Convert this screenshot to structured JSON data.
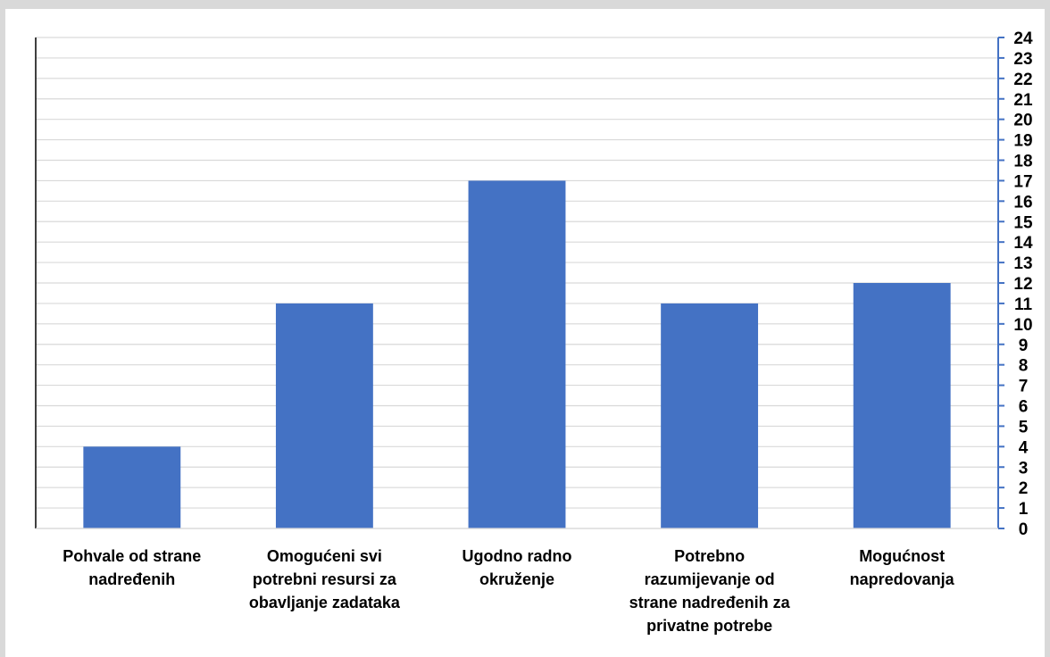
{
  "chart_data": {
    "type": "bar",
    "categories": [
      "Pohvale od strane nadređenih",
      "Omogućeni svi potrebni resursi za obavljanje zadataka",
      "Ugodno radno okruženje",
      "Potrebno razumijevanje od strane nadređenih za privatne potrebe",
      "Mogućnost napredovanja"
    ],
    "category_lines": [
      [
        "Pohvale od strane",
        "nadređenih"
      ],
      [
        "Omogućeni svi",
        "potrebni resursi za",
        "obavljanje zadataka"
      ],
      [
        "Ugodno radno",
        "okruženje"
      ],
      [
        "Potrebno",
        "razumijevanje od",
        "strane nadređenih za",
        "privatne potrebe"
      ],
      [
        "Mogućnost",
        "napredovanja"
      ]
    ],
    "values": [
      4,
      11,
      17,
      11,
      12
    ],
    "ylim": [
      0,
      24
    ],
    "y_ticks": [
      0,
      1,
      2,
      3,
      4,
      5,
      6,
      7,
      8,
      9,
      10,
      11,
      12,
      13,
      14,
      15,
      16,
      17,
      18,
      19,
      20,
      21,
      22,
      23,
      24
    ],
    "y_axis_side": "right",
    "grid": true,
    "legend": "none",
    "title": "",
    "xlabel": "",
    "ylabel": "",
    "colors": {
      "bar": "#4472c4",
      "grid": "#d9d9d9",
      "right_axis": "#4472c4",
      "left_axis": "#000000"
    }
  }
}
